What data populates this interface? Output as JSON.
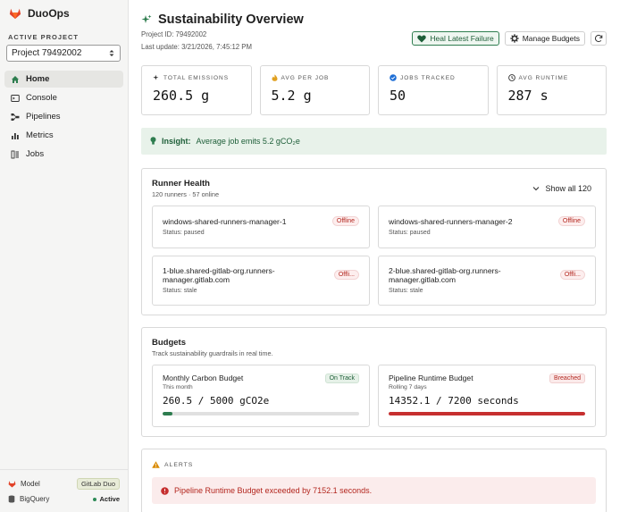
{
  "app": {
    "name": "DuoOps"
  },
  "sidebar": {
    "project_label": "ACTIVE PROJECT",
    "project_value": "Project 79492002",
    "items": [
      {
        "label": "Home",
        "icon": "home-icon"
      },
      {
        "label": "Console",
        "icon": "console-icon"
      },
      {
        "label": "Pipelines",
        "icon": "pipelines-icon"
      },
      {
        "label": "Metrics",
        "icon": "metrics-icon"
      },
      {
        "label": "Jobs",
        "icon": "jobs-icon"
      }
    ],
    "footer": {
      "model_label": "Model",
      "model_value": "GitLab Duo",
      "db_label": "BigQuery",
      "db_status": "Active"
    }
  },
  "header": {
    "title": "Sustainability Overview",
    "project_id": "Project ID: 79492002",
    "last_update": "Last update: 3/21/2026, 7:45:12 PM",
    "heal_button": "Heal Latest Failure",
    "budgets_button": "Manage Budgets"
  },
  "stats": [
    {
      "label": "TOTAL EMISSIONS",
      "value": "260.5 g"
    },
    {
      "label": "AVG PER JOB",
      "value": "5.2 g"
    },
    {
      "label": "JOBS TRACKED",
      "value": "50"
    },
    {
      "label": "AVG RUNTIME",
      "value": "287 s"
    }
  ],
  "insight": {
    "prefix": "Insight:",
    "text": "Average job emits 5.2 gCO₂e"
  },
  "runners": {
    "title": "Runner Health",
    "subtitle": "120 runners · 57 online",
    "show_all": "Show all 120",
    "items": [
      {
        "name": "windows-shared-runners-manager-1",
        "status": "Status: paused",
        "badge": "Offline"
      },
      {
        "name": "windows-shared-runners-manager-2",
        "status": "Status: paused",
        "badge": "Offline"
      },
      {
        "name": "1-blue.shared-gitlab-org.runners-manager.gitlab.com",
        "status": "Status: stale",
        "badge": "Offli..."
      },
      {
        "name": "2-blue.shared-gitlab-org.runners-manager.gitlab.com",
        "status": "Status: stale",
        "badge": "Offli..."
      }
    ]
  },
  "budgets": {
    "title": "Budgets",
    "subtitle": "Track sustainability guardrails in real time.",
    "items": [
      {
        "name": "Monthly Carbon Budget",
        "period": "This month",
        "badge": "On Track",
        "value": "260.5 / 5000 gCO2e",
        "progress": 0.052,
        "color": "#2e7d4f"
      },
      {
        "name": "Pipeline Runtime Budget",
        "period": "Rolling 7 days",
        "badge": "Breached",
        "value": "14352.1 / 7200 seconds",
        "progress": 1.0,
        "color": "#c62f2f"
      }
    ]
  },
  "alerts": {
    "label": "ALERTS",
    "items": [
      {
        "text": "Pipeline Runtime Budget exceeded by 7152.1 seconds."
      }
    ]
  }
}
